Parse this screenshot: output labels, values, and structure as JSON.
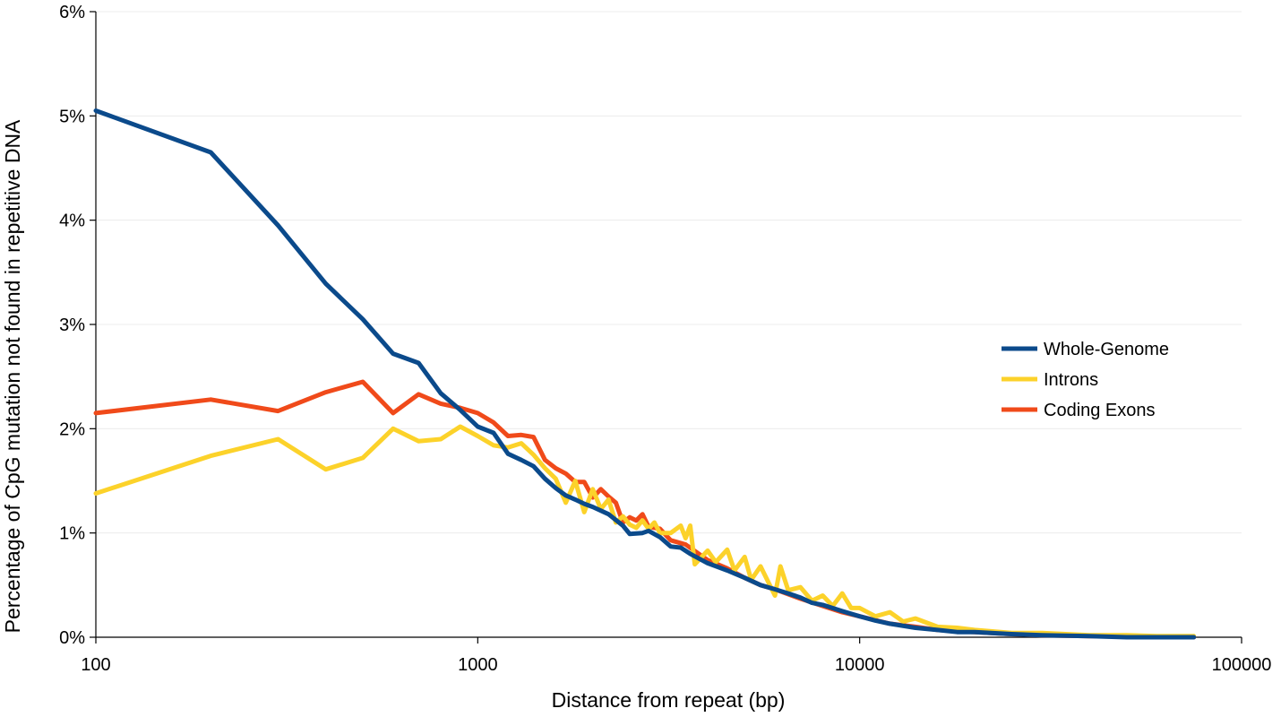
{
  "chart_data": {
    "type": "line",
    "title": "",
    "xlabel": "Distance from repeat (bp)",
    "ylabel": "Percentage of CpG mutation not found in repetitive DNA",
    "x_scale": "log",
    "xlim": [
      100,
      100000
    ],
    "ylim": [
      0,
      6
    ],
    "x_ticks": [
      {
        "value": 100,
        "label": "100"
      },
      {
        "value": 1000,
        "label": "1000"
      },
      {
        "value": 10000,
        "label": "10000"
      },
      {
        "value": 100000,
        "label": "100000"
      }
    ],
    "y_ticks": [
      {
        "value": 0,
        "label": "0%"
      },
      {
        "value": 1,
        "label": "1%"
      },
      {
        "value": 2,
        "label": "2%"
      },
      {
        "value": 3,
        "label": "3%"
      },
      {
        "value": 4,
        "label": "4%"
      },
      {
        "value": 5,
        "label": "5%"
      },
      {
        "value": 6,
        "label": "6%"
      }
    ],
    "grid": "horizontal",
    "legend_position": "right",
    "series": [
      {
        "name": "Whole-Genome",
        "color": "#0b4a8b",
        "x": [
          100,
          200,
          300,
          400,
          500,
          600,
          700,
          800,
          900,
          1000,
          1100,
          1200,
          1300,
          1400,
          1500,
          1600,
          1700,
          1800,
          1900,
          2000,
          2200,
          2400,
          2500,
          2700,
          2800,
          3000,
          3200,
          3400,
          3600,
          4000,
          4500,
          5000,
          5500,
          6000,
          6500,
          7000,
          7500,
          8000,
          9000,
          10000,
          11000,
          12000,
          14000,
          16000,
          18000,
          20000,
          25000,
          30000,
          40000,
          50000,
          60000,
          75000
        ],
        "values": [
          5.05,
          4.65,
          3.95,
          3.39,
          3.05,
          2.72,
          2.63,
          2.34,
          2.18,
          2.02,
          1.96,
          1.76,
          1.7,
          1.64,
          1.52,
          1.43,
          1.36,
          1.32,
          1.28,
          1.25,
          1.18,
          1.07,
          0.99,
          1.0,
          1.02,
          0.96,
          0.87,
          0.86,
          0.8,
          0.71,
          0.64,
          0.57,
          0.5,
          0.46,
          0.42,
          0.38,
          0.33,
          0.31,
          0.25,
          0.2,
          0.16,
          0.13,
          0.09,
          0.07,
          0.05,
          0.05,
          0.03,
          0.02,
          0.01,
          0.0,
          0.0,
          0.0
        ]
      },
      {
        "name": "Introns",
        "color": "#fcd22a",
        "x": [
          100,
          200,
          300,
          400,
          500,
          600,
          700,
          800,
          900,
          1000,
          1100,
          1200,
          1300,
          1400,
          1500,
          1600,
          1700,
          1800,
          1900,
          2000,
          2100,
          2200,
          2300,
          2400,
          2500,
          2600,
          2700,
          2800,
          2900,
          3000,
          3200,
          3400,
          3500,
          3600,
          3700,
          4000,
          4200,
          4500,
          4700,
          5000,
          5200,
          5500,
          6000,
          6200,
          6500,
          7000,
          7500,
          8000,
          8500,
          9000,
          9500,
          10000,
          11000,
          12000,
          13000,
          14000,
          16000,
          18000,
          20000,
          25000,
          30000,
          40000,
          50000,
          60000,
          75000
        ],
        "values": [
          1.38,
          1.74,
          1.9,
          1.61,
          1.72,
          2.0,
          1.88,
          1.9,
          2.02,
          1.93,
          1.84,
          1.82,
          1.86,
          1.75,
          1.62,
          1.52,
          1.29,
          1.5,
          1.2,
          1.42,
          1.23,
          1.32,
          1.1,
          1.16,
          1.08,
          1.05,
          1.12,
          1.04,
          1.1,
          1.0,
          1.0,
          1.07,
          0.95,
          1.07,
          0.7,
          0.83,
          0.72,
          0.84,
          0.64,
          0.77,
          0.55,
          0.68,
          0.4,
          0.68,
          0.45,
          0.48,
          0.35,
          0.4,
          0.3,
          0.42,
          0.28,
          0.28,
          0.2,
          0.24,
          0.15,
          0.18,
          0.1,
          0.09,
          0.07,
          0.04,
          0.04,
          0.02,
          0.02,
          0.01,
          0.01
        ]
      },
      {
        "name": "Coding Exons",
        "color": "#f04a1a",
        "x": [
          100,
          200,
          300,
          400,
          500,
          600,
          700,
          800,
          900,
          1000,
          1100,
          1200,
          1300,
          1400,
          1500,
          1600,
          1700,
          1800,
          1900,
          2000,
          2100,
          2200,
          2300,
          2400,
          2500,
          2600,
          2700,
          2800,
          3000,
          3200,
          3500,
          4000,
          4500,
          5000,
          5500,
          6000,
          7000,
          8000,
          9000,
          10000,
          12000,
          14000,
          16000,
          20000,
          25000,
          30000,
          40000,
          50000,
          75000
        ],
        "values": [
          2.15,
          2.28,
          2.17,
          2.35,
          2.45,
          2.15,
          2.33,
          2.24,
          2.2,
          2.15,
          2.06,
          1.93,
          1.94,
          1.92,
          1.7,
          1.62,
          1.57,
          1.49,
          1.49,
          1.34,
          1.42,
          1.35,
          1.29,
          1.1,
          1.15,
          1.12,
          1.18,
          1.06,
          1.04,
          0.93,
          0.89,
          0.74,
          0.66,
          0.57,
          0.5,
          0.46,
          0.37,
          0.3,
          0.24,
          0.2,
          0.13,
          0.1,
          0.07,
          0.05,
          0.03,
          0.02,
          0.01,
          0.01,
          0.0
        ]
      }
    ]
  }
}
